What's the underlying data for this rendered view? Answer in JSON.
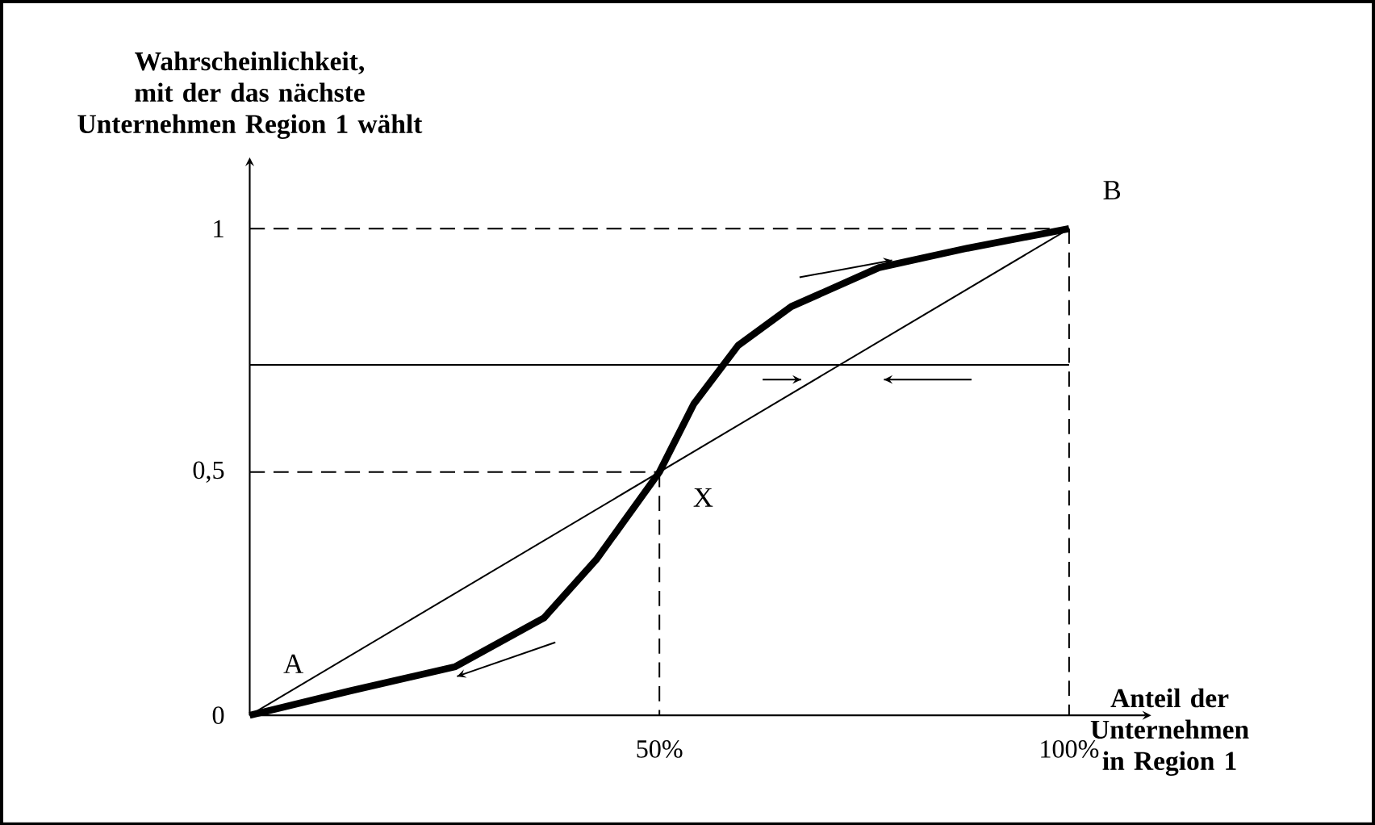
{
  "chart_data": {
    "type": "line",
    "xlabel": "Anteil der Unternehmen in Region 1",
    "ylabel": "Wahrscheinlichkeit, mit der das nächste Unternehmen Region 1 wählt",
    "xlim": [
      0,
      100
    ],
    "ylim": [
      0,
      1
    ],
    "xticks": [
      {
        "value": 50,
        "label": "50%"
      },
      {
        "value": 100,
        "label": "100%"
      }
    ],
    "yticks": [
      0,
      {
        "value": 0.5,
        "label": "0,5"
      },
      1
    ],
    "grid": false,
    "marker": "none",
    "series": [
      {
        "color": "#000000",
        "line_style": "solid",
        "x": [
          0,
          12.2,
          25.1,
          35.9,
          42.3,
          50,
          54.2,
          59.6,
          66.1,
          76.8,
          87.6,
          100
        ],
        "values": [
          0,
          0.05,
          0.1,
          0.2,
          0.32,
          0.5,
          0.64,
          0.76,
          0.84,
          0.92,
          0.96,
          1
        ]
      },
      {
        "color": "#000000",
        "line_style": "solid",
        "x": [
          0,
          50,
          100
        ],
        "values": [
          0,
          0.5,
          1
        ]
      },
      {
        "color": "#000000",
        "line_style": "solid",
        "x": [
          0,
          50,
          100
        ],
        "values": [
          0.72,
          0.72,
          0.72
        ]
      },
      {
        "color": "#000000",
        "line_style": "dashed",
        "x": [
          0,
          100
        ],
        "values": [
          1,
          1
        ]
      },
      {
        "color": "#000000",
        "line_style": "dashed",
        "x": [
          100,
          100
        ],
        "values": [
          1,
          0
        ]
      },
      {
        "color": "#000000",
        "line_style": "dashed",
        "x": [
          0,
          50
        ],
        "values": [
          0.5,
          0.5
        ]
      },
      {
        "color": "#000000",
        "line_style": "dashed",
        "x": [
          50,
          50
        ],
        "values": [
          0.5,
          0
        ]
      },
      {
        "color": "#000000",
        "line_style": "solid",
        "x": [
          67.1,
          78.4
        ],
        "values": [
          0.9,
          0.935
        ]
      },
      {
        "color": "#000000",
        "line_style": "solid",
        "x": [
          62.6,
          67.3
        ],
        "values": [
          0.69,
          0.69
        ]
      },
      {
        "color": "#000000",
        "line_style": "solid",
        "x": [
          88.1,
          77.4
        ],
        "values": [
          0.69,
          0.69
        ]
      },
      {
        "color": "#000000",
        "line_style": "solid",
        "x": [
          37.3,
          25.3
        ],
        "values": [
          0.15,
          0.08
        ]
      }
    ],
    "annotations": [
      {
        "text": "A",
        "x": 0,
        "y": 0
      },
      {
        "text": "B",
        "x": 100,
        "y": 1
      },
      {
        "text": "X",
        "x": 50,
        "y": 0.5
      }
    ]
  }
}
